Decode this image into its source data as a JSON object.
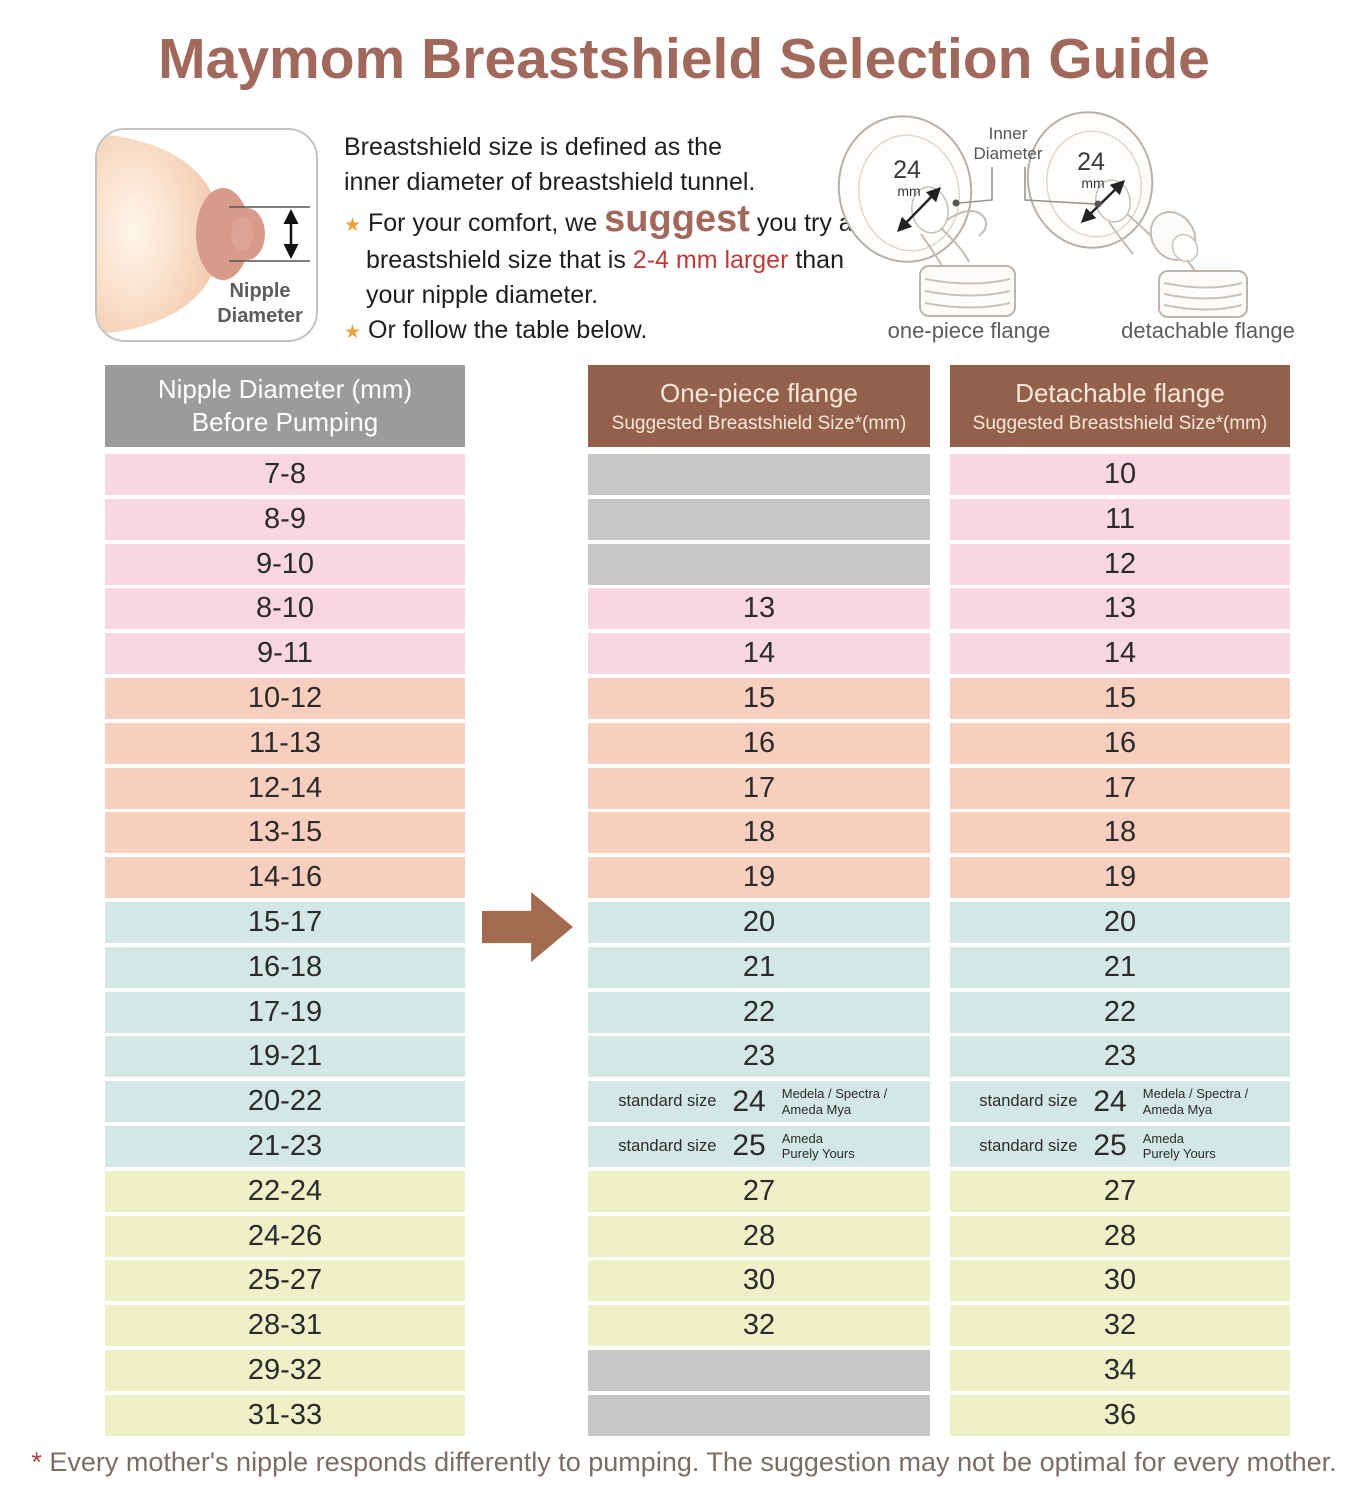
{
  "title": "Maymom Breastshield Selection Guide",
  "intro": {
    "definition_line1": "Breastshield size is defined as the",
    "definition_line2": "inner diameter of breastshield tunnel.",
    "bullet1_pre": "For your comfort, we ",
    "bullet1_emph": "suggest",
    "bullet1_mid": " you try a breastshield size that is ",
    "bullet1_red": "2-4 mm larger",
    "bullet1_post": " than your nipple diameter.",
    "bullet2": "Or follow the table below.",
    "star_glyph": "★",
    "diagram": {
      "label_line1": "Nipple",
      "label_line2": "Diameter"
    },
    "flanges": {
      "inner_diameter_line1": "Inner",
      "inner_diameter_line2": "Diameter",
      "size_value": "24",
      "size_unit": "mm",
      "caption_one_piece": "one-piece flange",
      "caption_detachable": "detachable flange"
    }
  },
  "table": {
    "header_col1_line1": "Nipple Diameter (mm)",
    "header_col1_line2": "Before Pumping",
    "header_col2_title": "One-piece flange",
    "header_col2_subtitle": "Suggested Breastshield Size*(mm)",
    "header_col3_title": "Detachable flange",
    "header_col3_subtitle": "Suggested Breastshield Size*(mm)",
    "rows": [
      {
        "range": "7-8",
        "one_piece": null,
        "detachable": "10",
        "color": "pink"
      },
      {
        "range": "8-9",
        "one_piece": null,
        "detachable": "11",
        "color": "pink"
      },
      {
        "range": "9-10",
        "one_piece": null,
        "detachable": "12",
        "color": "pink"
      },
      {
        "range": "8-10",
        "one_piece": "13",
        "detachable": "13",
        "color": "pink"
      },
      {
        "range": "9-11",
        "one_piece": "14",
        "detachable": "14",
        "color": "pink"
      },
      {
        "range": "10-12",
        "one_piece": "15",
        "detachable": "15",
        "color": "salmon"
      },
      {
        "range": "11-13",
        "one_piece": "16",
        "detachable": "16",
        "color": "salmon"
      },
      {
        "range": "12-14",
        "one_piece": "17",
        "detachable": "17",
        "color": "salmon"
      },
      {
        "range": "13-15",
        "one_piece": "18",
        "detachable": "18",
        "color": "salmon"
      },
      {
        "range": "14-16",
        "one_piece": "19",
        "detachable": "19",
        "color": "salmon"
      },
      {
        "range": "15-17",
        "one_piece": "20",
        "detachable": "20",
        "color": "blue"
      },
      {
        "range": "16-18",
        "one_piece": "21",
        "detachable": "21",
        "color": "blue"
      },
      {
        "range": "17-19",
        "one_piece": "22",
        "detachable": "22",
        "color": "blue"
      },
      {
        "range": "19-21",
        "one_piece": "23",
        "detachable": "23",
        "color": "blue"
      },
      {
        "range": "20-22",
        "one_piece": "24",
        "detachable": "24",
        "color": "blue",
        "special": {
          "label": "standard size",
          "brands": [
            "Medela / Spectra /",
            "Ameda Mya"
          ]
        }
      },
      {
        "range": "21-23",
        "one_piece": "25",
        "detachable": "25",
        "color": "blue",
        "special": {
          "label": "standard size",
          "brands": [
            "Ameda",
            "Purely Yours"
          ]
        }
      },
      {
        "range": "22-24",
        "one_piece": "27",
        "detachable": "27",
        "color": "yellow"
      },
      {
        "range": "24-26",
        "one_piece": "28",
        "detachable": "28",
        "color": "yellow"
      },
      {
        "range": "25-27",
        "one_piece": "30",
        "detachable": "30",
        "color": "yellow"
      },
      {
        "range": "28-31",
        "one_piece": "32",
        "detachable": "32",
        "color": "yellow"
      },
      {
        "range": "29-32",
        "one_piece": null,
        "detachable": "34",
        "color": "yellow"
      },
      {
        "range": "31-33",
        "one_piece": null,
        "detachable": "36",
        "color": "yellow"
      }
    ]
  },
  "footnote": {
    "star": "*",
    "text": "Every mother's nipple responds differently to pumping. The suggestion may not be optimal for every mother."
  },
  "colors": {
    "title": "#A1695B",
    "header_brown": "#93604C",
    "header_gray": "#9B9B9B",
    "pink": "#F8D7E3",
    "salmon": "#F8CFBE",
    "blue": "#D3E8E4",
    "yellow": "#EEF0C8",
    "placeholder_gray": "#C7C7C7",
    "arrow": "#A26B50",
    "accent_red": "#BE3B3B",
    "star_gold": "#E8A33D"
  }
}
